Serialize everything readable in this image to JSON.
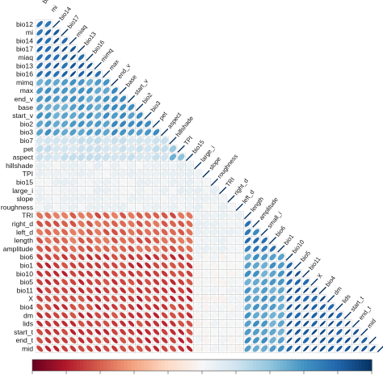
{
  "chart_data": {
    "type": "heatmap",
    "variables": [
      "bi",
      "mi",
      "bio12",
      "bio14",
      "bio17",
      "miaq",
      "bio13",
      "bio16",
      "mimq",
      "max",
      "end_v",
      "base",
      "start_v",
      "bio2",
      "bio3",
      "bio7",
      "pet",
      "aspect",
      "hillshade",
      "TPI",
      "bio15",
      "large_i",
      "slope",
      "roughness",
      "TRI",
      "right_d",
      "left_d",
      "length",
      "amplitude",
      "small_i",
      "bio6",
      "bio1",
      "bio10",
      "bio5",
      "bio11",
      "X",
      "bio4",
      "dm",
      "lids",
      "start_t",
      "end_t",
      "mid"
    ],
    "row_labels": [
      "bio12",
      "mi",
      "bio14",
      "bio17",
      "miaq",
      "bio13",
      "bio16",
      "mimq",
      "max",
      "end_v",
      "base",
      "start_v",
      "bio2",
      "bio3",
      "bio7",
      "pet",
      "aspect",
      "hillshade",
      "TPI",
      "bio15",
      "large_i",
      "slope",
      "roughness",
      "TRI",
      "right_d",
      "left_d",
      "length",
      "amplitude",
      "bio6",
      "bio1",
      "bio10",
      "bio5",
      "bio11",
      "X",
      "bio4",
      "dm",
      "lids",
      "start_t",
      "end_t",
      "mid"
    ],
    "diagonal_labels": [
      "bi",
      "mi",
      "bio14",
      "bio17",
      "miaq",
      "bio13",
      "bio16",
      "mimq",
      "max",
      "end_v",
      "base",
      "start_v",
      "bio2",
      "bio3",
      "pet",
      "aspect",
      "hillshade",
      "TPI",
      "bio15",
      "large_i",
      "slope",
      "roughness",
      "TRI",
      "right_d",
      "left_d",
      "length",
      "amplitude",
      "small_i",
      "bio6",
      "bio1",
      "bio10",
      "bio5",
      "bio11",
      "X",
      "bio4",
      "dm",
      "lids",
      "start_t",
      "end_t",
      "mid"
    ],
    "lower_triangle_only": true,
    "glyph": "ellipse",
    "color_scale": {
      "min": -1,
      "max": 1,
      "stops": [
        "#67001f",
        "#b2182b",
        "#d6604d",
        "#f4a582",
        "#fddbc7",
        "#f7f7f7",
        "#d1e5f0",
        "#92c5de",
        "#4393c3",
        "#2166ac",
        "#053061"
      ]
    },
    "colorbar_ticks": [
      -1,
      -0.8,
      -0.6,
      -0.4,
      -0.2,
      0,
      0.2,
      0.4,
      0.6,
      0.8,
      1
    ],
    "colorbar_tick_labels": [],
    "title": "",
    "xlabel": "",
    "ylabel": ""
  }
}
